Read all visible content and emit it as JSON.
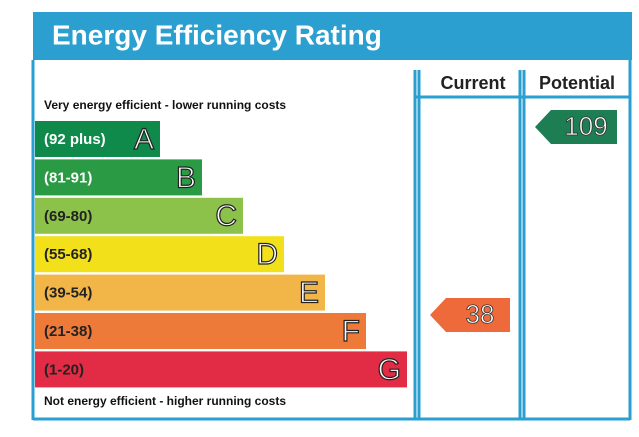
{
  "header": {
    "title": "Energy Efficiency Rating"
  },
  "columns": [
    "Current",
    "Potential"
  ],
  "top_note": "Very energy efficient - lower running costs",
  "bottom_note": "Not energy efficient - higher running costs",
  "bands": [
    {
      "range": "(92 plus)",
      "letter": "A"
    },
    {
      "range": "(81-91)",
      "letter": "B"
    },
    {
      "range": "(69-80)",
      "letter": "C"
    },
    {
      "range": "(55-68)",
      "letter": "D"
    },
    {
      "range": "(39-54)",
      "letter": "E"
    },
    {
      "range": "(21-38)",
      "letter": "F"
    },
    {
      "range": "(1-20)",
      "letter": "G"
    }
  ],
  "current": {
    "value": "38"
  },
  "potential": {
    "value": "109"
  }
}
